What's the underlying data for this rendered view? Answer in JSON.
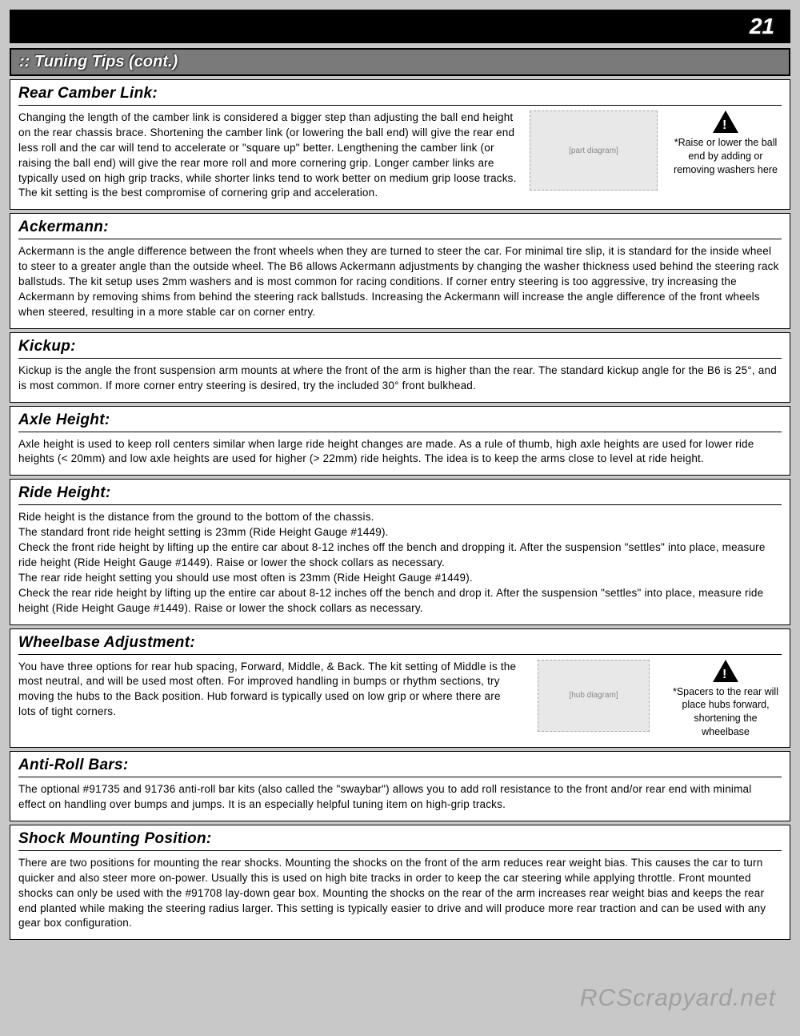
{
  "page_number": "21",
  "banner": ":: Tuning Tips (cont.)",
  "watermark": "RCScrapyard.net",
  "sections": [
    {
      "title": "Rear Camber Link:",
      "body": "Changing the length of the camber link is considered a bigger step than adjusting the ball end height on the rear chassis brace. Shortening the camber link (or lowering the ball end) will give the rear end less roll and the car will tend to accelerate or \"square up\" better. Lengthening the camber link (or raising the ball end) will give the rear more roll and more cornering grip. Longer camber links are typically used on high grip tracks, while shorter links tend to work better on medium grip loose tracks. The kit setting is the best compromise of cornering grip and acceleration.",
      "note": "*Raise or lower the ball end by adding or removing washers here",
      "has_diagram": true
    },
    {
      "title": "Ackermann:",
      "body": "Ackermann is the angle difference between the front wheels when they are turned to steer the car. For minimal tire slip, it is standard for the inside wheel to steer to a greater angle than the outside wheel. The B6 allows Ackermann adjustments by changing the washer thickness used behind the steering rack ballstuds. The kit setup uses 2mm washers and is most common for racing conditions. If corner entry steering is too aggressive, try increasing the Ackermann by removing shims from behind the steering rack ballstuds. Increasing the Ackermann will increase the angle difference of the front wheels when steered, resulting in a more stable car on corner entry."
    },
    {
      "title": "Kickup:",
      "body": "Kickup is the angle the front suspension arm mounts at where the front of the arm is higher than the rear. The standard kickup angle for the B6 is 25°, and is most common. If more corner entry steering is desired, try the included 30° front bulkhead."
    },
    {
      "title": "Axle Height:",
      "body": "Axle height is used to keep roll centers similar when large ride height changes are made. As a rule of thumb, high axle heights are used for lower ride heights (< 20mm) and low axle heights are used for higher (> 22mm) ride heights. The idea is to keep the arms close to level at ride height."
    },
    {
      "title": "Ride Height:",
      "body": "Ride height is the distance from the ground to the bottom of the chassis.\nThe standard front ride height setting is 23mm (Ride Height Gauge #1449).\nCheck the front ride height by lifting up the entire car about 8-12 inches off the bench and dropping it. After the suspension \"settles\" into place, measure ride height (Ride Height Gauge #1449). Raise or lower the shock collars as necessary.\nThe rear ride height setting you should use most often is 23mm (Ride Height Gauge #1449).\nCheck the rear ride height by lifting up the entire car about 8-12 inches off the bench and drop it. After the suspension \"settles\" into place, measure ride height (Ride Height Gauge #1449). Raise or lower the shock collars as necessary."
    },
    {
      "title": "Wheelbase Adjustment:",
      "body": "You have three options for rear hub spacing, Forward, Middle, & Back. The kit setting of Middle is the most neutral, and will be used most often. For improved handling in bumps or rhythm sections, try moving the hubs to the Back position. Hub forward is typically used on low grip or where there are lots of tight corners.",
      "note": "*Spacers to the rear will place hubs forward, shortening the wheelbase",
      "has_diagram": true
    },
    {
      "title": "Anti-Roll Bars:",
      "body": "The optional #91735 and 91736 anti-roll bar kits (also called the \"swaybar\") allows you to add roll resistance to the front and/or rear end with minimal effect on handling over bumps and jumps. It is an especially helpful tuning item on high-grip tracks."
    },
    {
      "title": "Shock Mounting Position:",
      "body": "There are two positions for mounting the rear shocks. Mounting the shocks on the front of the arm reduces rear weight bias. This causes the car to turn quicker and also steer more on-power. Usually this is used on high bite tracks in order to keep the car steering while applying throttle. Front mounted shocks can only be used with the #91708 lay-down gear box. Mounting the shocks on the rear of the arm increases rear weight bias and keeps the rear end planted while making the steering radius larger. This setting is typically easier to drive and will produce more rear traction and can be used with any gear box configuration."
    }
  ]
}
